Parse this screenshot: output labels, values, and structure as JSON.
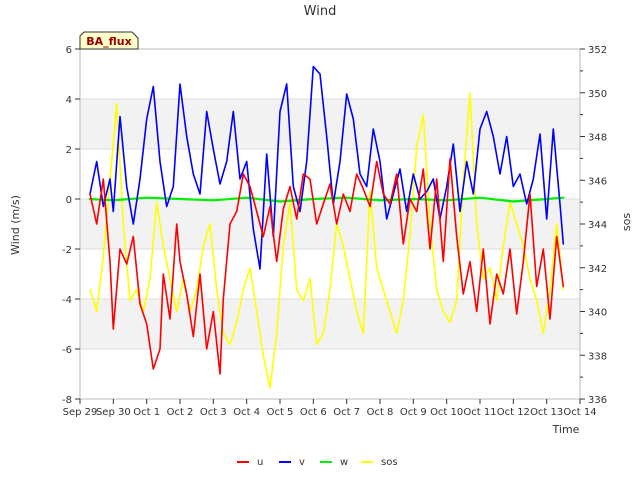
{
  "chart_data": {
    "type": "line",
    "title": "Wind",
    "badge": "BA_flux",
    "xlabel": "Time",
    "ylabel_left": "Wind (m/s)",
    "ylabel_right": "sos",
    "ylim_left": [
      -8,
      6
    ],
    "ylim_right": [
      336,
      352
    ],
    "xlim": [
      0,
      15
    ],
    "x_tick_values": [
      0,
      1,
      2,
      3,
      4,
      5,
      6,
      7,
      8,
      9,
      10,
      11,
      12,
      13,
      14,
      15
    ],
    "x_tick_labels": [
      "Sep 29",
      "Sep 30",
      "Oct 1",
      "Oct 2",
      "Oct 3",
      "Oct 4",
      "Oct 5",
      "Oct 6",
      "Oct 7",
      "Oct 8",
      "Oct 9",
      "Oct 10",
      "Oct 11",
      "Oct 12",
      "Oct 13",
      "Oct 14"
    ],
    "y_left_ticks": [
      -8,
      -6,
      -4,
      -2,
      0,
      2,
      4,
      6
    ],
    "y_right_ticks": [
      336,
      338,
      340,
      342,
      344,
      346,
      348,
      350,
      352
    ],
    "grid": "horizontal bands",
    "legend_position": "bottom",
    "series": [
      {
        "name": "u",
        "color": "#ff0000",
        "axis": "left",
        "x": [
          0.3,
          0.5,
          0.7,
          0.9,
          1.0,
          1.2,
          1.4,
          1.6,
          1.8,
          2.0,
          2.2,
          2.4,
          2.5,
          2.7,
          2.9,
          3.0,
          3.2,
          3.4,
          3.6,
          3.8,
          4.0,
          4.2,
          4.3,
          4.5,
          4.7,
          4.9,
          5.1,
          5.3,
          5.5,
          5.7,
          5.9,
          6.1,
          6.3,
          6.5,
          6.7,
          6.9,
          7.1,
          7.3,
          7.5,
          7.7,
          7.9,
          8.1,
          8.3,
          8.5,
          8.7,
          8.9,
          9.1,
          9.3,
          9.5,
          9.7,
          9.9,
          10.1,
          10.3,
          10.5,
          10.7,
          10.9,
          11.1,
          11.3,
          11.5,
          11.7,
          11.9,
          12.1,
          12.3,
          12.5,
          12.7,
          12.9,
          13.1,
          13.3,
          13.5,
          13.7,
          13.9,
          14.1,
          14.3,
          14.5
        ],
        "values": [
          0.2,
          -1.0,
          0.8,
          -2.5,
          -5.2,
          -2.0,
          -2.6,
          -1.5,
          -4.2,
          -5.0,
          -6.8,
          -6.0,
          -3.0,
          -4.8,
          -1.0,
          -2.5,
          -3.8,
          -5.5,
          -3.0,
          -6.0,
          -4.5,
          -7.0,
          -4.0,
          -1.0,
          -0.5,
          1.0,
          0.5,
          -0.5,
          -1.5,
          -0.3,
          -2.5,
          -0.4,
          0.5,
          -0.8,
          1.0,
          0.8,
          -1.0,
          -0.2,
          0.6,
          -1.0,
          0.2,
          -0.5,
          1.0,
          0.4,
          -0.3,
          1.5,
          0.2,
          -0.2,
          1.0,
          -1.8,
          0.0,
          -0.5,
          1.2,
          -2.0,
          0.8,
          -2.5,
          1.6,
          -1.5,
          -3.8,
          -2.5,
          -4.5,
          -2.0,
          -5.0,
          -3.0,
          -3.8,
          -2.0,
          -4.6,
          -2.5,
          0.2,
          -3.5,
          -2.0,
          -4.8,
          -1.5,
          -3.5
        ]
      },
      {
        "name": "v",
        "color": "#0000ff",
        "axis": "left",
        "x": [
          0.3,
          0.5,
          0.7,
          0.9,
          1.0,
          1.2,
          1.4,
          1.6,
          1.8,
          2.0,
          2.2,
          2.4,
          2.6,
          2.8,
          3.0,
          3.2,
          3.4,
          3.6,
          3.8,
          4.0,
          4.2,
          4.4,
          4.6,
          4.8,
          5.0,
          5.2,
          5.4,
          5.6,
          5.8,
          6.0,
          6.2,
          6.4,
          6.6,
          6.8,
          7.0,
          7.2,
          7.4,
          7.6,
          7.8,
          8.0,
          8.2,
          8.4,
          8.6,
          8.8,
          9.0,
          9.2,
          9.4,
          9.6,
          9.8,
          10.0,
          10.2,
          10.4,
          10.6,
          10.8,
          11.0,
          11.2,
          11.4,
          11.6,
          11.8,
          12.0,
          12.2,
          12.4,
          12.6,
          12.8,
          13.0,
          13.2,
          13.4,
          13.6,
          13.8,
          14.0,
          14.2,
          14.4,
          14.5
        ],
        "values": [
          0.2,
          1.5,
          -0.3,
          0.8,
          -0.5,
          3.3,
          0.5,
          -1.0,
          0.8,
          3.2,
          4.5,
          1.5,
          -0.3,
          0.5,
          4.6,
          2.5,
          1.0,
          0.2,
          3.5,
          2.0,
          0.6,
          1.5,
          3.5,
          0.8,
          1.5,
          -1.2,
          -2.8,
          1.8,
          -1.5,
          3.5,
          4.6,
          0.5,
          -0.5,
          1.5,
          5.3,
          5.0,
          2.5,
          -0.2,
          1.5,
          4.2,
          3.2,
          1.0,
          0.5,
          2.8,
          1.5,
          -0.8,
          0.2,
          1.2,
          -0.5,
          1.0,
          0.0,
          0.3,
          0.8,
          -0.8,
          0.5,
          2.2,
          -0.5,
          1.5,
          0.2,
          2.8,
          3.5,
          2.5,
          1.0,
          2.5,
          0.5,
          1.0,
          -0.2,
          0.8,
          2.6,
          -0.8,
          2.8,
          -0.2,
          -1.8
        ]
      },
      {
        "name": "w",
        "color": "#00ee00",
        "axis": "left",
        "x": [
          0.3,
          1.0,
          2.0,
          3.0,
          4.0,
          5.0,
          6.0,
          7.0,
          8.0,
          9.0,
          10.0,
          11.0,
          12.0,
          13.0,
          14.0,
          14.5
        ],
        "values": [
          0.0,
          -0.05,
          0.05,
          0.0,
          -0.05,
          0.05,
          -0.1,
          0.0,
          0.05,
          -0.05,
          0.0,
          -0.05,
          0.05,
          -0.1,
          0.0,
          0.05
        ]
      },
      {
        "name": "sos",
        "color": "#ffff00",
        "axis": "right",
        "x": [
          0.3,
          0.5,
          0.7,
          0.9,
          1.1,
          1.3,
          1.5,
          1.7,
          1.9,
          2.1,
          2.3,
          2.5,
          2.7,
          2.9,
          3.1,
          3.3,
          3.5,
          3.7,
          3.9,
          4.1,
          4.3,
          4.5,
          4.7,
          4.9,
          5.1,
          5.3,
          5.5,
          5.7,
          5.9,
          6.1,
          6.3,
          6.5,
          6.7,
          6.9,
          7.1,
          7.3,
          7.5,
          7.7,
          7.9,
          8.1,
          8.3,
          8.5,
          8.7,
          8.9,
          9.1,
          9.3,
          9.5,
          9.7,
          9.9,
          10.1,
          10.3,
          10.5,
          10.7,
          10.9,
          11.1,
          11.3,
          11.5,
          11.7,
          11.9,
          12.1,
          12.3,
          12.5,
          12.7,
          12.9,
          13.1,
          13.3,
          13.5,
          13.7,
          13.9,
          14.1,
          14.3,
          14.5
        ],
        "values": [
          341.0,
          340.0,
          342.5,
          346.0,
          349.5,
          344.0,
          340.5,
          341.0,
          340.0,
          341.5,
          345.0,
          343.0,
          341.5,
          340.0,
          341.5,
          340.0,
          341.0,
          343.0,
          344.0,
          341.0,
          339.0,
          338.5,
          339.5,
          341.0,
          342.0,
          340.0,
          338.0,
          336.5,
          339.0,
          343.0,
          345.0,
          341.0,
          340.5,
          341.5,
          338.5,
          339.0,
          341.0,
          344.0,
          343.0,
          341.5,
          340.0,
          339.0,
          345.5,
          342.0,
          341.0,
          340.0,
          339.0,
          340.5,
          343.5,
          347.5,
          349.0,
          344.0,
          341.0,
          340.0,
          339.5,
          340.5,
          346.0,
          350.0,
          344.0,
          341.5,
          342.0,
          340.5,
          343.0,
          345.0,
          344.0,
          343.0,
          341.5,
          340.5,
          339.0,
          341.0,
          344.0,
          341.0
        ]
      }
    ]
  }
}
